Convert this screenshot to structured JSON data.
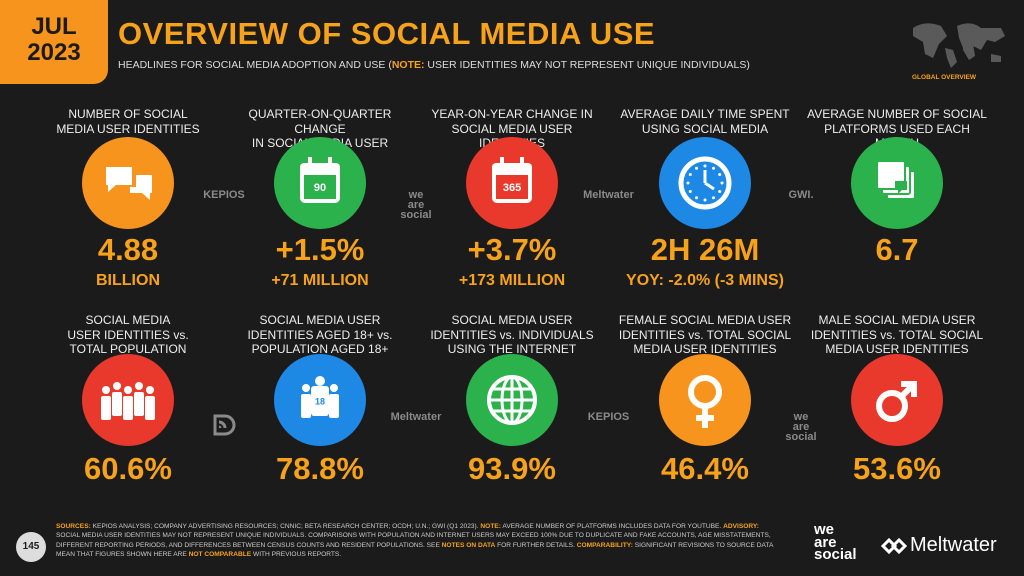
{
  "header": {
    "badge": [
      "JUL",
      "2023"
    ],
    "title": "OVERVIEW OF SOCIAL MEDIA USE",
    "subtitle": [
      {
        "text": "HEADLINES FOR SOCIAL MEDIA ADOPTION AND USE ("
      },
      {
        "text": "NOTE:",
        "accent": true
      },
      {
        "text": " USER IDENTITIES MAY NOT REPRESENT UNIQUE INDIVIDUALS)"
      }
    ],
    "section": "GLOBAL OVERVIEW"
  },
  "tiles": [
    {
      "label": [
        "NUMBER OF SOCIAL",
        "MEDIA USER IDENTITIES"
      ],
      "color": "#f7941d",
      "value": "4.88",
      "sub": "BILLION"
    },
    {
      "label": [
        "QUARTER-ON-QUARTER CHANGE",
        "IN SOCIAL MEDIA USER IDENTITIES"
      ],
      "color": "#2bb24c",
      "icon_text": "90",
      "value": "+1.5%",
      "sub": "+71 MILLION"
    },
    {
      "label": [
        "YEAR-ON-YEAR CHANGE IN",
        "SOCIAL MEDIA USER IDENTITIES"
      ],
      "color": "#e8392c",
      "icon_text": "365",
      "value": "+3.7%",
      "sub": "+173 MILLION"
    },
    {
      "label": [
        "AVERAGE DAILY TIME SPENT",
        "USING SOCIAL MEDIA"
      ],
      "color": "#1e88e5",
      "value": "2H 26M",
      "sub": "YOY: -2.0% (-3 MINS)"
    },
    {
      "label": [
        "AVERAGE NUMBER OF SOCIAL",
        "PLATFORMS USED EACH MONTH"
      ],
      "color": "#2bb24c",
      "value": "6.7"
    },
    {
      "label": [
        "SOCIAL MEDIA",
        "USER IDENTITIES vs.",
        "TOTAL POPULATION"
      ],
      "color": "#e8392c",
      "value": "60.6%"
    },
    {
      "label": [
        "SOCIAL MEDIA USER",
        "IDENTITIES AGED 18+ vs.",
        "POPULATION AGED 18+"
      ],
      "color": "#1e88e5",
      "icon_text": "18",
      "value": "78.8%"
    },
    {
      "label": [
        "SOCIAL MEDIA USER",
        "IDENTITIES vs. INDIVIDUALS",
        "USING THE INTERNET"
      ],
      "color": "#2bb24c",
      "value": "93.9%"
    },
    {
      "label": [
        "FEMALE SOCIAL MEDIA USER",
        "IDENTITIES vs. TOTAL SOCIAL",
        "MEDIA USER IDENTITIES"
      ],
      "color": "#f7941d",
      "value": "46.4%"
    },
    {
      "label": [
        "MALE SOCIAL MEDIA USER",
        "IDENTITIES vs. TOTAL SOCIAL",
        "MEDIA USER IDENTITIES"
      ],
      "color": "#e8392c",
      "value": "53.6%"
    }
  ],
  "sources": {
    "row1": [
      [
        "KEPIOS"
      ],
      [
        "we",
        "are",
        "social"
      ],
      [
        "Meltwater"
      ],
      [
        "GWI."
      ]
    ],
    "row2": [
      [],
      [
        "Meltwater"
      ],
      [
        "KEPIOS"
      ],
      [
        "we",
        "are",
        "social"
      ]
    ]
  },
  "footer": {
    "page": "145",
    "notes": [
      {
        "text": "SOURCES:",
        "accent": true
      },
      {
        "text": " KEPIOS ANALYSIS; COMPANY ADVERTISING RESOURCES; CNNIC; BETA RESEARCH CENTER; OCDH; U.N.; GWI (Q1 2023). "
      },
      {
        "text": "NOTE:",
        "accent": true
      },
      {
        "text": " AVERAGE NUMBER OF PLATFORMS INCLUDES DATA FOR YOUTUBE. "
      },
      {
        "text": "ADVISORY:",
        "accent": true
      },
      {
        "text": " SOCIAL MEDIA USER IDENTITIES MAY NOT REPRESENT UNIQUE INDIVIDUALS. COMPARISONS WITH POPULATION AND INTERNET USERS MAY EXCEED 100% DUE TO DUPLICATE AND FAKE ACCOUNTS, AGE MISSTATEMENTS, DIFFERENT REPORTING PERIODS, AND DIFFERENCES BETWEEN CENSUS COUNTS AND RESIDENT POPULATIONS. SEE "
      },
      {
        "text": "NOTES ON DATA",
        "accent": true
      },
      {
        "text": " FOR FURTHER DETAILS. "
      },
      {
        "text": "COMPARABILITY:",
        "accent": true
      },
      {
        "text": " SIGNIFICANT REVISIONS TO SOURCE DATA MEAN THAT FIGURES SHOWN HERE ARE "
      },
      {
        "text": "NOT COMPARABLE",
        "accent": true
      },
      {
        "text": " WITH PREVIOUS REPORTS."
      }
    ],
    "brand_was": [
      "we",
      "are",
      "social"
    ],
    "brand_meltwater": "Meltwater"
  }
}
